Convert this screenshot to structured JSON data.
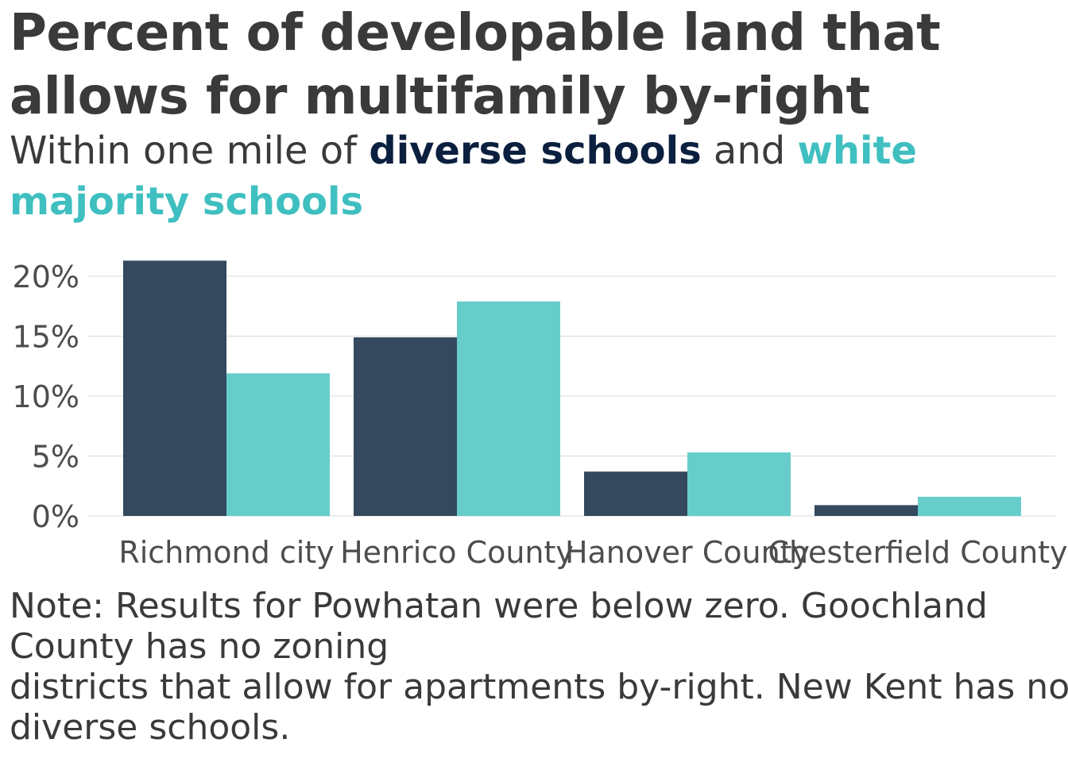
{
  "title": {
    "line1": "Percent of developable land that",
    "line2": "allows for multifamily by-right"
  },
  "subtitle": {
    "prefix": "Within one mile of ",
    "diverse": "diverse schools",
    "middle": " and ",
    "white": "white majority schools"
  },
  "colors": {
    "diverse": "#34495e",
    "diverse_text": "#0b1f3f",
    "white": "#67cdcb",
    "white_text": "#3fbfc0",
    "grid": "#d9d9d9",
    "axis_text": "#4d4d4d"
  },
  "chart_data": {
    "type": "bar",
    "categories": [
      "Richmond city",
      "Henrico County",
      "Hanover County",
      "Chesterfield County"
    ],
    "series": [
      {
        "name": "diverse schools",
        "values": [
          21.3,
          14.9,
          3.7,
          0.9
        ]
      },
      {
        "name": "white majority schools",
        "values": [
          11.9,
          17.9,
          5.3,
          1.6
        ]
      }
    ],
    "ylim": [
      0,
      20
    ],
    "yticks": [
      "0%",
      "5%",
      "10%",
      "15%",
      "20%"
    ],
    "ytick_values": [
      0,
      5,
      10,
      15,
      20
    ],
    "grid": true,
    "legend": "in subtitle",
    "xlabel": "",
    "ylabel": ""
  },
  "note": {
    "line1": "Note: Results for Powhatan were below zero. Goochland",
    "line2": "County has no zoning",
    "line3": "districts that allow for apartments by-right. New Kent has no",
    "line4": "diverse schools."
  }
}
